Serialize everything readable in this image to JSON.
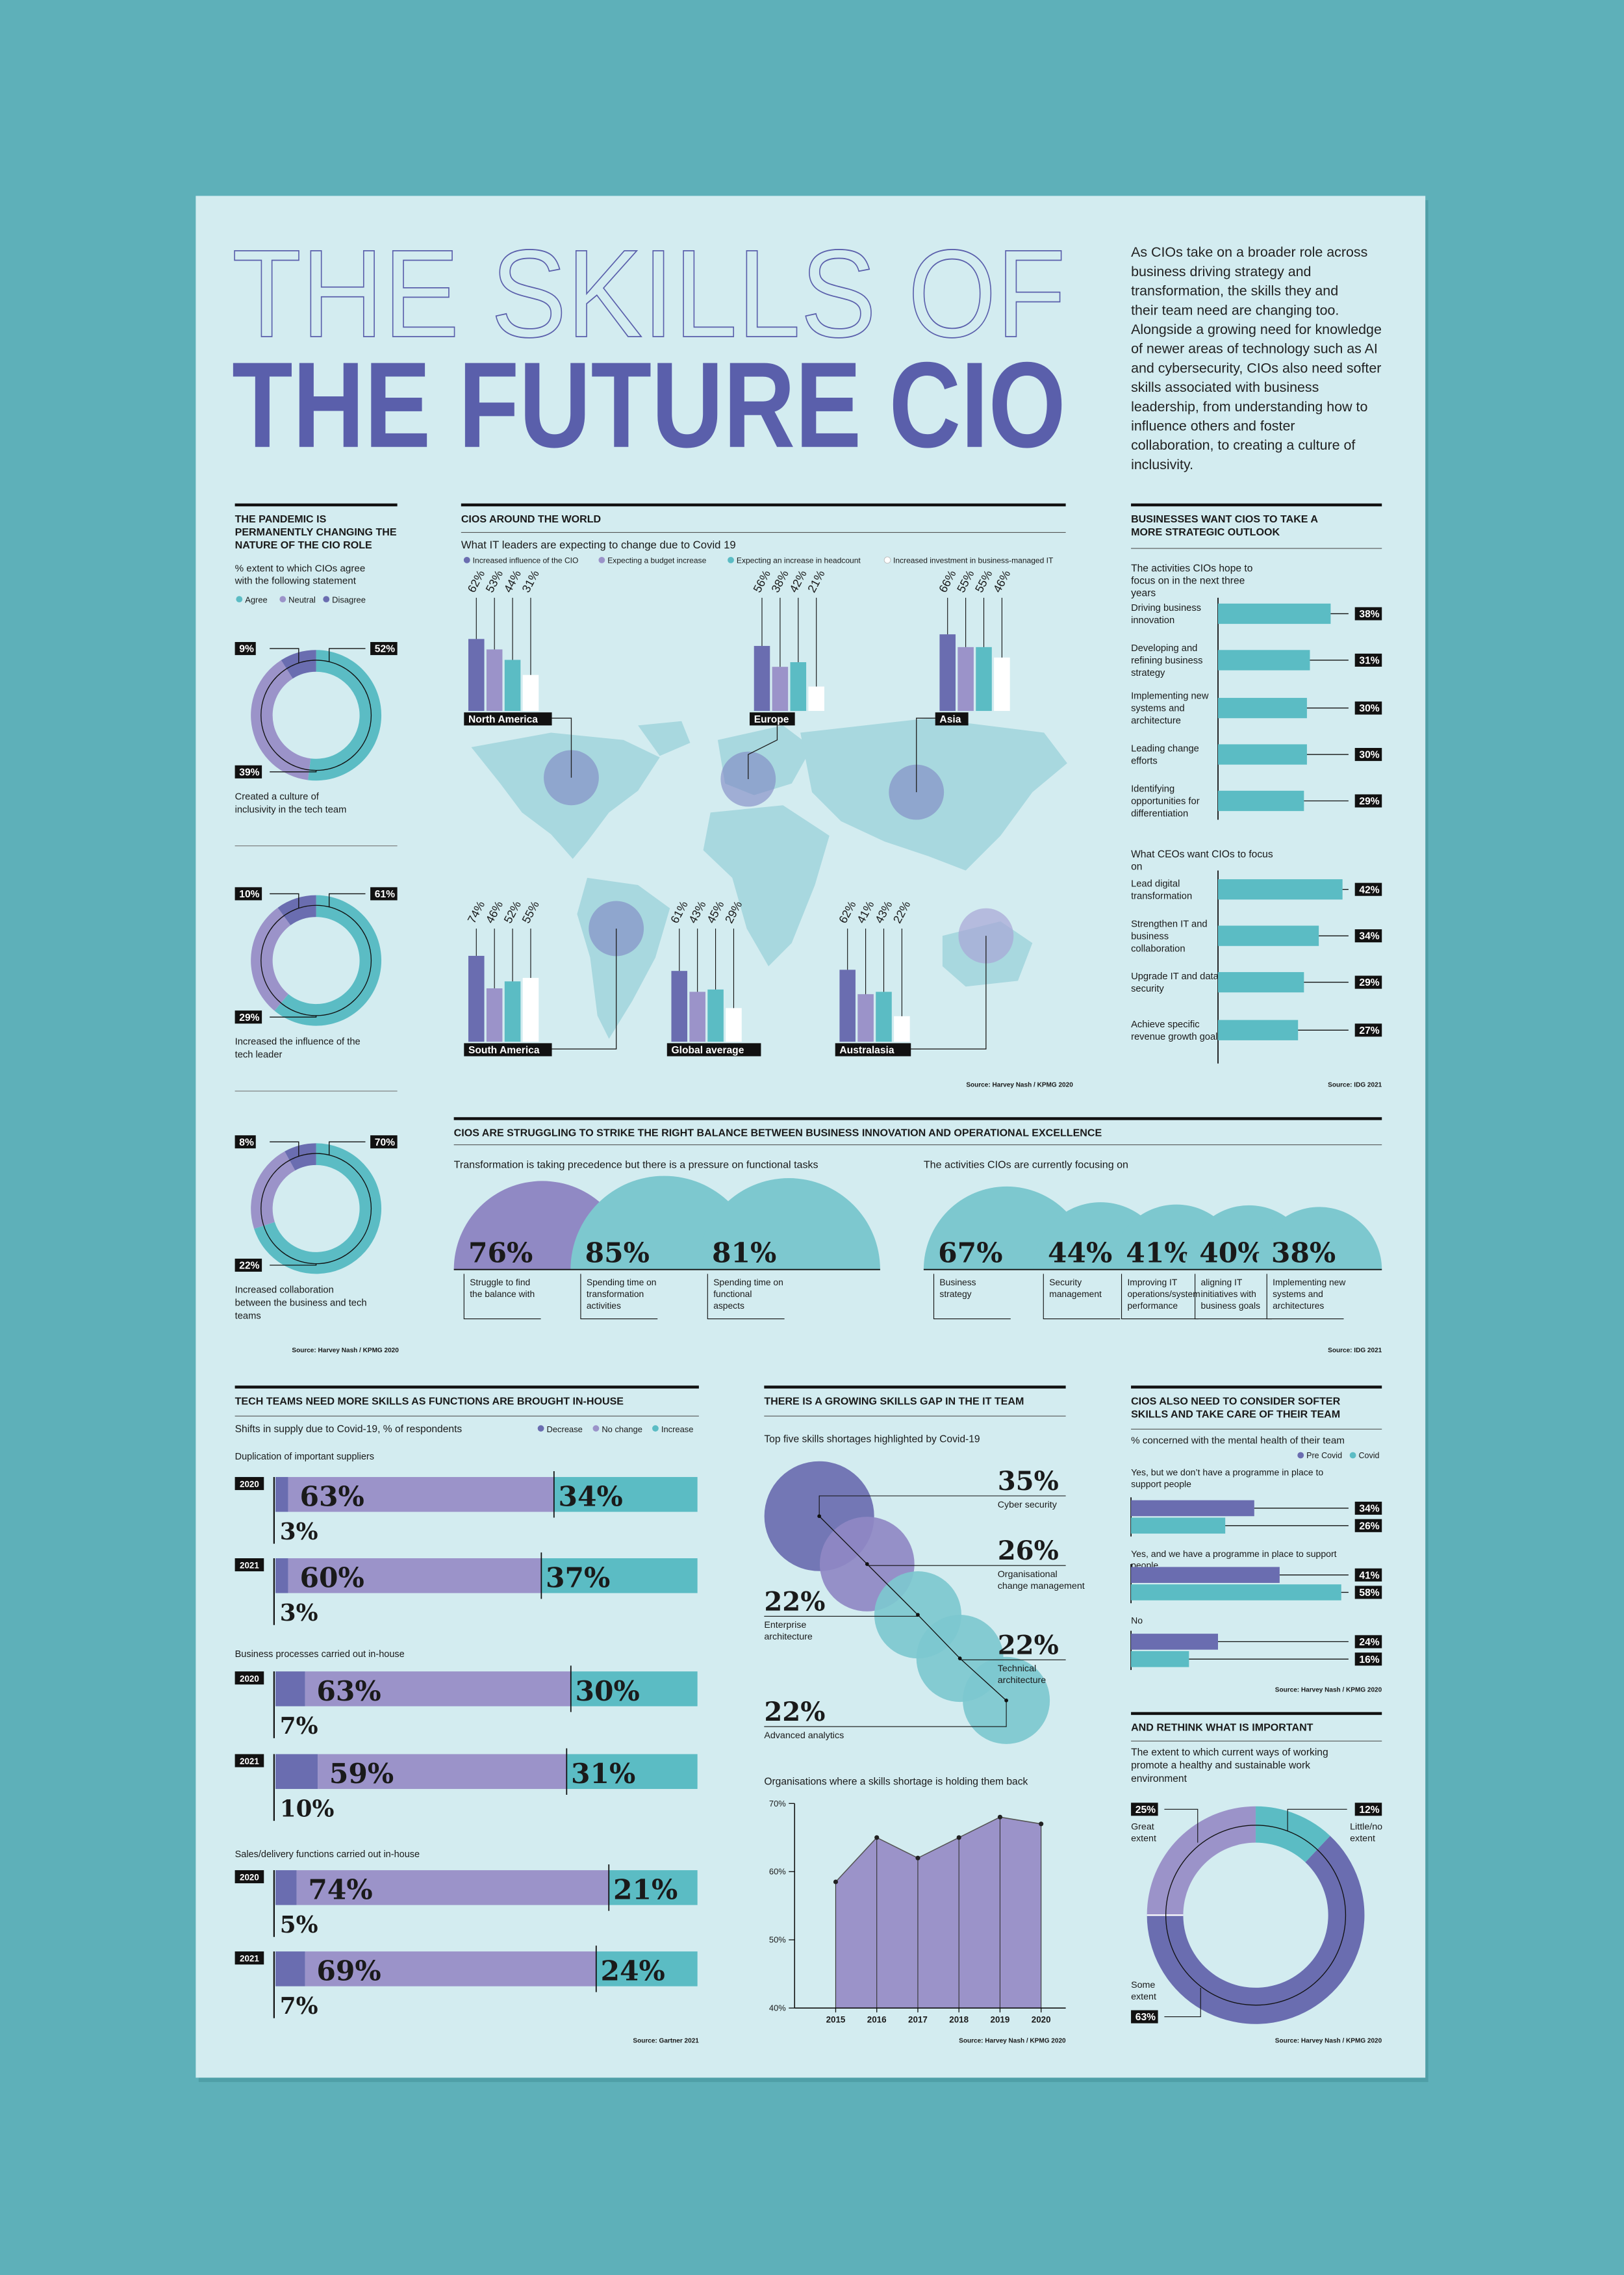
{
  "header": {
    "title_outline": "THE SKILLS OF",
    "title": "THE FUTURE CIO",
    "intro": "As CIOs take on a broader role across business driving strategy and transformation, the skills they and their team need are changing too. Alongside a growing need for knowledge of newer areas of technology such as AI and cybersecurity, CIOs also need softer skills associated with business leadership, from understanding how to influence others and foster collaboration, to creating a culture of inclusivity."
  },
  "chart_data": [
    {
      "type": "donut-set",
      "title": "THE PANDEMIC IS PERMANENTLY CHANGING THE NATURE OF THE CIO ROLE",
      "subtitle": "% extent to which CIOs agree with the following statement",
      "series": [
        {
          "name": "Agree",
          "color": "#5bbcc4"
        },
        {
          "name": "Neutral",
          "color": "#9b93c9"
        },
        {
          "name": "Disagree",
          "color": "#6a6db0"
        }
      ],
      "donuts": [
        {
          "label": "Created a culture of inclusivity in the tech team",
          "values": [
            52,
            39,
            9
          ],
          "value_labels": [
            "52%",
            "39%",
            "9%"
          ]
        },
        {
          "label": "Increased the influence of the tech leader",
          "values": [
            61,
            29,
            10
          ],
          "value_labels": [
            "61%",
            "29%",
            "10%"
          ]
        },
        {
          "label": "Increased collaboration between the business and tech teams",
          "values": [
            70,
            22,
            8
          ],
          "value_labels": [
            "70%",
            "22%",
            "8%"
          ]
        }
      ],
      "source": "Source: Harvey Nash / KPMG 2020"
    },
    {
      "type": "map-bar",
      "title": "CIOS AROUND THE WORLD",
      "subtitle": "What IT leaders are expecting to change due to Covid 19",
      "categories": [
        "North America",
        "Europe",
        "Asia",
        "South America",
        "Global average",
        "Australasia"
      ],
      "series": [
        {
          "name": "Increased influence of the CIO",
          "color": "#6a6db0",
          "values": [
            62,
            56,
            66,
            74,
            61,
            62
          ],
          "value_labels": [
            "62%",
            "56%",
            "66%",
            "74%",
            "61%",
            "62%"
          ]
        },
        {
          "name": "Expecting a budget increase",
          "color": "#9b93c9",
          "values": [
            53,
            38,
            55,
            46,
            43,
            41
          ],
          "value_labels": [
            "53%",
            "38%",
            "55%",
            "46%",
            "43%",
            "41%"
          ]
        },
        {
          "name": "Expecting an increase in headcount",
          "color": "#5bbcc4",
          "values": [
            44,
            42,
            55,
            52,
            45,
            43
          ],
          "value_labels": [
            "44%",
            "42%",
            "55%",
            "52%",
            "45%",
            "43%"
          ]
        },
        {
          "name": "Increased investment in business-managed IT",
          "color": "#ffffff",
          "values": [
            31,
            21,
            46,
            55,
            29,
            22
          ],
          "value_labels": [
            "31%",
            "21%",
            "46%",
            "55%",
            "29%",
            "22%"
          ]
        }
      ],
      "ylim": [
        0,
        100
      ],
      "source": "Source: Harvey Nash / KPMG 2020"
    },
    {
      "type": "hbar",
      "title": "BUSINESSES WANT CIOS TO TAKE A MORE STRATEGIC OUTLOOK",
      "color": "#5bbcc4",
      "xlim": [
        0,
        45
      ],
      "groups": [
        {
          "title": "The activities CIOs hope to focus on in the next three years",
          "categories": [
            "Driving business innovation",
            "Developing and refining business strategy",
            "Implementing new systems and architecture",
            "Leading change efforts",
            "Identifying opportunities for differentiation"
          ],
          "values": [
            38,
            31,
            30,
            30,
            29
          ],
          "value_labels": [
            "38%",
            "31%",
            "30%",
            "30%",
            "29%"
          ]
        },
        {
          "title": "What CEOs want CIOs to focus on",
          "categories": [
            "Lead digital transformation",
            "Strengthen IT and business collaboration",
            "Upgrade IT and data security",
            "Achieve specific revenue growth goals"
          ],
          "values": [
            42,
            34,
            29,
            27
          ],
          "value_labels": [
            "42%",
            "34%",
            "29%",
            "27%"
          ]
        }
      ],
      "source": "Source: IDG 2021"
    },
    {
      "type": "semicircle",
      "title": "CIOS ARE STRUGGLING TO STRIKE THE RIGHT BALANCE BETWEEN BUSINESS INNOVATION AND OPERATIONAL EXCELLENCE",
      "groups": [
        {
          "subtitle": "Transformation is taking precedence but there is a pressure on functional tasks",
          "categories": [
            "Struggle to find the balance with",
            "Spending time on transformation activities",
            "Spending time on functional aspects"
          ],
          "values": [
            76,
            85,
            81
          ],
          "value_labels": [
            "76%",
            "85%",
            "81%"
          ],
          "colors": [
            "#9089c4",
            "#7dc8cf",
            "#7dc8cf"
          ]
        },
        {
          "subtitle": "The activities CIOs are currently focusing on",
          "categories": [
            "Business strategy",
            "Security management",
            "Improving IT operations/system performance",
            "aligning IT initiatives with business goals",
            "Implementing new systems and architectures"
          ],
          "values": [
            67,
            44,
            41,
            40,
            38
          ],
          "value_labels": [
            "67%",
            "44%",
            "41%",
            "40%",
            "38%"
          ],
          "colors": [
            "#7dc8cf",
            "#7dc8cf",
            "#7dc8cf",
            "#7dc8cf",
            "#7dc8cf"
          ]
        }
      ],
      "source": "Source: IDG 2021"
    },
    {
      "type": "stacked-hbar",
      "title": "TECH TEAMS NEED MORE SKILLS AS FUNCTIONS ARE BROUGHT IN-HOUSE",
      "subtitle": "Shifts in supply due to Covid-19, % of respondents",
      "series": [
        {
          "name": "Decrease",
          "color": "#6a6db0"
        },
        {
          "name": "No change",
          "color": "#9b93c9"
        },
        {
          "name": "Increase",
          "color": "#5bbcc4"
        }
      ],
      "xlim": [
        0,
        100
      ],
      "groups": [
        {
          "title": "Duplication of important suppliers",
          "rows": [
            {
              "year": "2020",
              "values": [
                3,
                63,
                34
              ],
              "value_labels": [
                "3%",
                "63%",
                "34%"
              ]
            },
            {
              "year": "2021",
              "values": [
                3,
                60,
                37
              ],
              "value_labels": [
                "3%",
                "60%",
                "37%"
              ]
            }
          ]
        },
        {
          "title": "Business processes carried out in-house",
          "rows": [
            {
              "year": "2020",
              "values": [
                7,
                63,
                30
              ],
              "value_labels": [
                "7%",
                "63%",
                "30%"
              ]
            },
            {
              "year": "2021",
              "values": [
                10,
                59,
                31
              ],
              "value_labels": [
                "10%",
                "59%",
                "31%"
              ]
            }
          ]
        },
        {
          "title": "Sales/delivery functions carried out in-house",
          "rows": [
            {
              "year": "2020",
              "values": [
                5,
                74,
                21
              ],
              "value_labels": [
                "5%",
                "74%",
                "21%"
              ]
            },
            {
              "year": "2021",
              "values": [
                7,
                69,
                24
              ],
              "value_labels": [
                "7%",
                "69%",
                "24%"
              ]
            }
          ]
        }
      ],
      "source": "Source: Gartner 2021"
    },
    {
      "type": "bubble",
      "title": "THERE IS A GROWING SKILLS GAP IN THE IT TEAM",
      "subtitle": "Top five skills shortages highlighted by Covid-19",
      "categories": [
        "Cyber security",
        "Organisational change management",
        "Enterprise architecture",
        "Technical architecture",
        "Advanced analytics"
      ],
      "values": [
        35,
        26,
        22,
        22,
        22
      ],
      "value_labels": [
        "35%",
        "26%",
        "22%",
        "22%",
        "22%"
      ],
      "colors": [
        "#6a6db0",
        "#8f88c4",
        "#7dc8cf",
        "#7dc8cf",
        "#7dc8cf"
      ]
    },
    {
      "type": "area",
      "subtitle": "Organisations where a skills shortage is holding them back",
      "x": [
        2015,
        2016,
        2017,
        2018,
        2019,
        2020
      ],
      "values": [
        58.5,
        65,
        62,
        65,
        68,
        67
      ],
      "color": "#9b93c9",
      "xlim": [
        2014,
        2020.6
      ],
      "xticks": [
        2015,
        2016,
        2017,
        2018,
        2019,
        2020
      ],
      "ylim": [
        40,
        70
      ],
      "yticks": [
        {
          "value": 40,
          "label": "40%"
        },
        {
          "value": 50,
          "label": "50%"
        },
        {
          "value": 60,
          "label": "60%"
        },
        {
          "value": 70,
          "label": "70%"
        }
      ],
      "source": "Source: Harvey Nash / KPMG 2020"
    },
    {
      "type": "grouped-hbar",
      "title": "CIOS ALSO NEED TO CONSIDER SOFTER SKILLS AND TAKE CARE OF THEIR TEAM",
      "subtitle": "% concerned with the mental health of their team",
      "categories": [
        "Yes, but we don’t have a programme in place to support people",
        "Yes, and we have a programme in place to support people",
        "No"
      ],
      "series": [
        {
          "name": "Pre Covid",
          "color": "#6a6db0",
          "values": [
            34,
            41,
            24
          ],
          "value_labels": [
            "34%",
            "41%",
            "24%"
          ]
        },
        {
          "name": "Covid",
          "color": "#5bbcc4",
          "values": [
            26,
            58,
            16
          ],
          "value_labels": [
            "26%",
            "58%",
            "16%"
          ]
        }
      ],
      "xlim": [
        0,
        60
      ],
      "source": "Source: Harvey Nash / KPMG 2020"
    },
    {
      "type": "donut",
      "title": "AND RETHINK WHAT IS IMPORTANT",
      "subtitle": "The extent to which current ways of working promote a healthy and sustainable work environment",
      "categories": [
        "Great extent",
        "Little/no extent",
        "Some extent"
      ],
      "values": [
        25,
        12,
        63
      ],
      "value_labels": [
        "25%",
        "12%",
        "63%"
      ],
      "colors": [
        "#9b93c9",
        "#5bbcc4",
        "#6a6db0"
      ],
      "source": "Source: Harvey Nash / KPMG 2020"
    }
  ]
}
